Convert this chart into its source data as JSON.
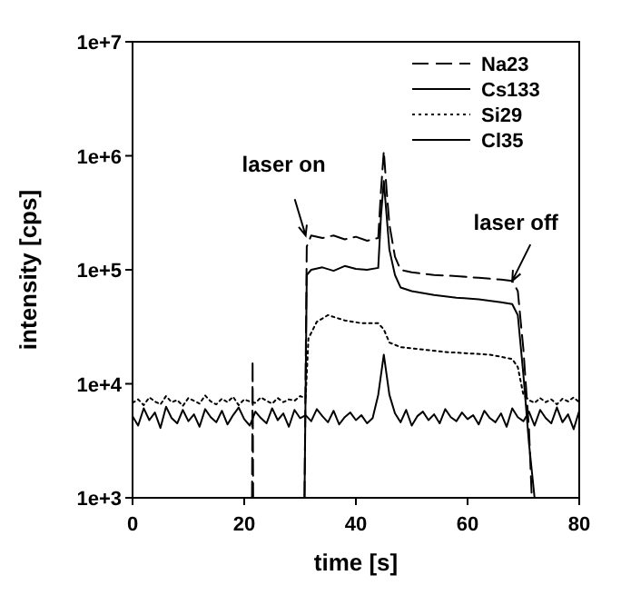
{
  "chart_data": {
    "type": "line",
    "xlabel": "time [s]",
    "ylabel": "intensity [cps]",
    "log": "y",
    "xlim": [
      0,
      80
    ],
    "xticks": [
      0,
      20,
      40,
      60,
      80
    ],
    "ylim": [
      1000,
      10000000
    ],
    "yticks": [
      {
        "value": 1000,
        "label": "1e+3"
      },
      {
        "value": 10000,
        "label": "1e+4"
      },
      {
        "value": 100000,
        "label": "1e+5"
      },
      {
        "value": 1000000,
        "label": "1e+6"
      },
      {
        "value": 10000000,
        "label": "1e+7"
      }
    ],
    "grid": false,
    "legend": "top right",
    "annotations": [
      {
        "text": "laser on",
        "x": 31,
        "y": 200000
      },
      {
        "text": "laser off",
        "x": 68,
        "y": 80000
      }
    ],
    "series": [
      {
        "name": "Na23",
        "color": "#000000",
        "line_style": "dashed",
        "x": [
          21.4,
          21.5,
          21.6,
          25,
          30.8,
          31.2,
          32,
          34,
          36,
          38,
          40,
          42,
          44,
          44.5,
          45,
          45.5,
          46,
          47,
          48,
          50,
          54,
          58,
          62,
          66,
          68,
          69,
          70,
          71,
          71.5
        ],
        "values": [
          1000,
          16000,
          1000,
          null,
          1000,
          160000,
          200000,
          190000,
          200000,
          185000,
          195000,
          180000,
          190000,
          500000,
          1100000,
          500000,
          250000,
          130000,
          100000,
          95000,
          90000,
          88000,
          85000,
          82000,
          80000,
          65000,
          20000,
          4000,
          1000
        ]
      },
      {
        "name": "Cs133",
        "color": "#000000",
        "line_style": "solid",
        "x": [
          30.8,
          31.2,
          32,
          34,
          36,
          38,
          40,
          42,
          44,
          44.5,
          45,
          45.5,
          46,
          47,
          48,
          50,
          54,
          58,
          62,
          66,
          68,
          69,
          70,
          71,
          72
        ],
        "values": [
          1000,
          90000,
          100000,
          105000,
          98000,
          108000,
          102000,
          100000,
          104000,
          300000,
          600000,
          300000,
          150000,
          90000,
          70000,
          65000,
          60000,
          57000,
          55000,
          52000,
          50000,
          40000,
          12000,
          3000,
          1000
        ]
      },
      {
        "name": "Si29",
        "color": "#000000",
        "line_style": "dotted",
        "x": [
          0,
          1,
          2,
          3,
          4,
          5,
          6,
          7,
          8,
          9,
          10,
          11,
          12,
          13,
          14,
          15,
          16,
          17,
          18,
          19,
          20,
          21,
          22,
          23,
          24,
          25,
          26,
          27,
          28,
          29,
          30,
          31,
          31.5,
          33,
          35,
          38,
          41,
          44,
          45,
          46,
          48,
          52,
          56,
          60,
          64,
          68,
          69,
          70,
          71,
          72,
          73,
          74,
          75,
          76,
          77,
          78,
          79,
          80
        ],
        "values": [
          6800,
          7300,
          6500,
          7600,
          7000,
          6600,
          7800,
          6900,
          7200,
          6400,
          7500,
          7100,
          6700,
          7900,
          7000,
          6600,
          7400,
          6900,
          7700,
          6500,
          7300,
          7000,
          6800,
          7600,
          7100,
          6700,
          7500,
          6900,
          7300,
          7100,
          7800,
          7500,
          25000,
          35000,
          40000,
          36000,
          34000,
          34000,
          30000,
          23000,
          21000,
          20000,
          19000,
          18500,
          18000,
          16500,
          14000,
          8000,
          7200,
          6800,
          7500,
          6900,
          7300,
          6600,
          7400,
          7000,
          7600,
          6900
        ]
      },
      {
        "name": "Cl35",
        "color": "#000000",
        "line_style": "solid",
        "x": [
          0,
          1,
          2,
          3,
          4,
          5,
          6,
          7,
          8,
          9,
          10,
          11,
          12,
          13,
          14,
          15,
          16,
          17,
          18,
          19,
          20,
          21,
          22,
          23,
          24,
          25,
          26,
          27,
          28,
          29,
          30,
          31,
          32,
          33,
          34,
          35,
          36,
          37,
          38,
          39,
          40,
          41,
          42,
          43,
          44,
          45,
          46,
          47,
          48,
          49,
          50,
          51,
          52,
          53,
          54,
          55,
          56,
          57,
          58,
          59,
          60,
          61,
          62,
          63,
          64,
          65,
          66,
          67,
          68,
          69,
          70,
          71,
          72,
          73,
          74,
          75,
          76,
          77,
          78,
          79,
          80
        ],
        "values": [
          5200,
          4300,
          6100,
          4800,
          5600,
          4100,
          6300,
          5000,
          4500,
          5900,
          4700,
          5400,
          4200,
          6000,
          5100,
          4600,
          5800,
          4400,
          5300,
          6200,
          4900,
          4300,
          5700,
          5000,
          4500,
          6100,
          4800,
          5500,
          4200,
          5900,
          5000,
          5300,
          4700,
          6000,
          5200,
          4600,
          5800,
          4400,
          5100,
          5600,
          4800,
          5300,
          4500,
          5000,
          8000,
          18000,
          8000,
          5500,
          4600,
          5900,
          4300,
          5200,
          5700,
          4800,
          5400,
          4500,
          6000,
          5100,
          4700,
          5600,
          4900,
          5300,
          4400,
          5800,
          5000,
          4600,
          5500,
          4200,
          6100,
          5100,
          4700,
          5700,
          4300,
          5900,
          5000,
          4500,
          6200,
          4600,
          5400,
          4000,
          5800
        ]
      }
    ]
  }
}
